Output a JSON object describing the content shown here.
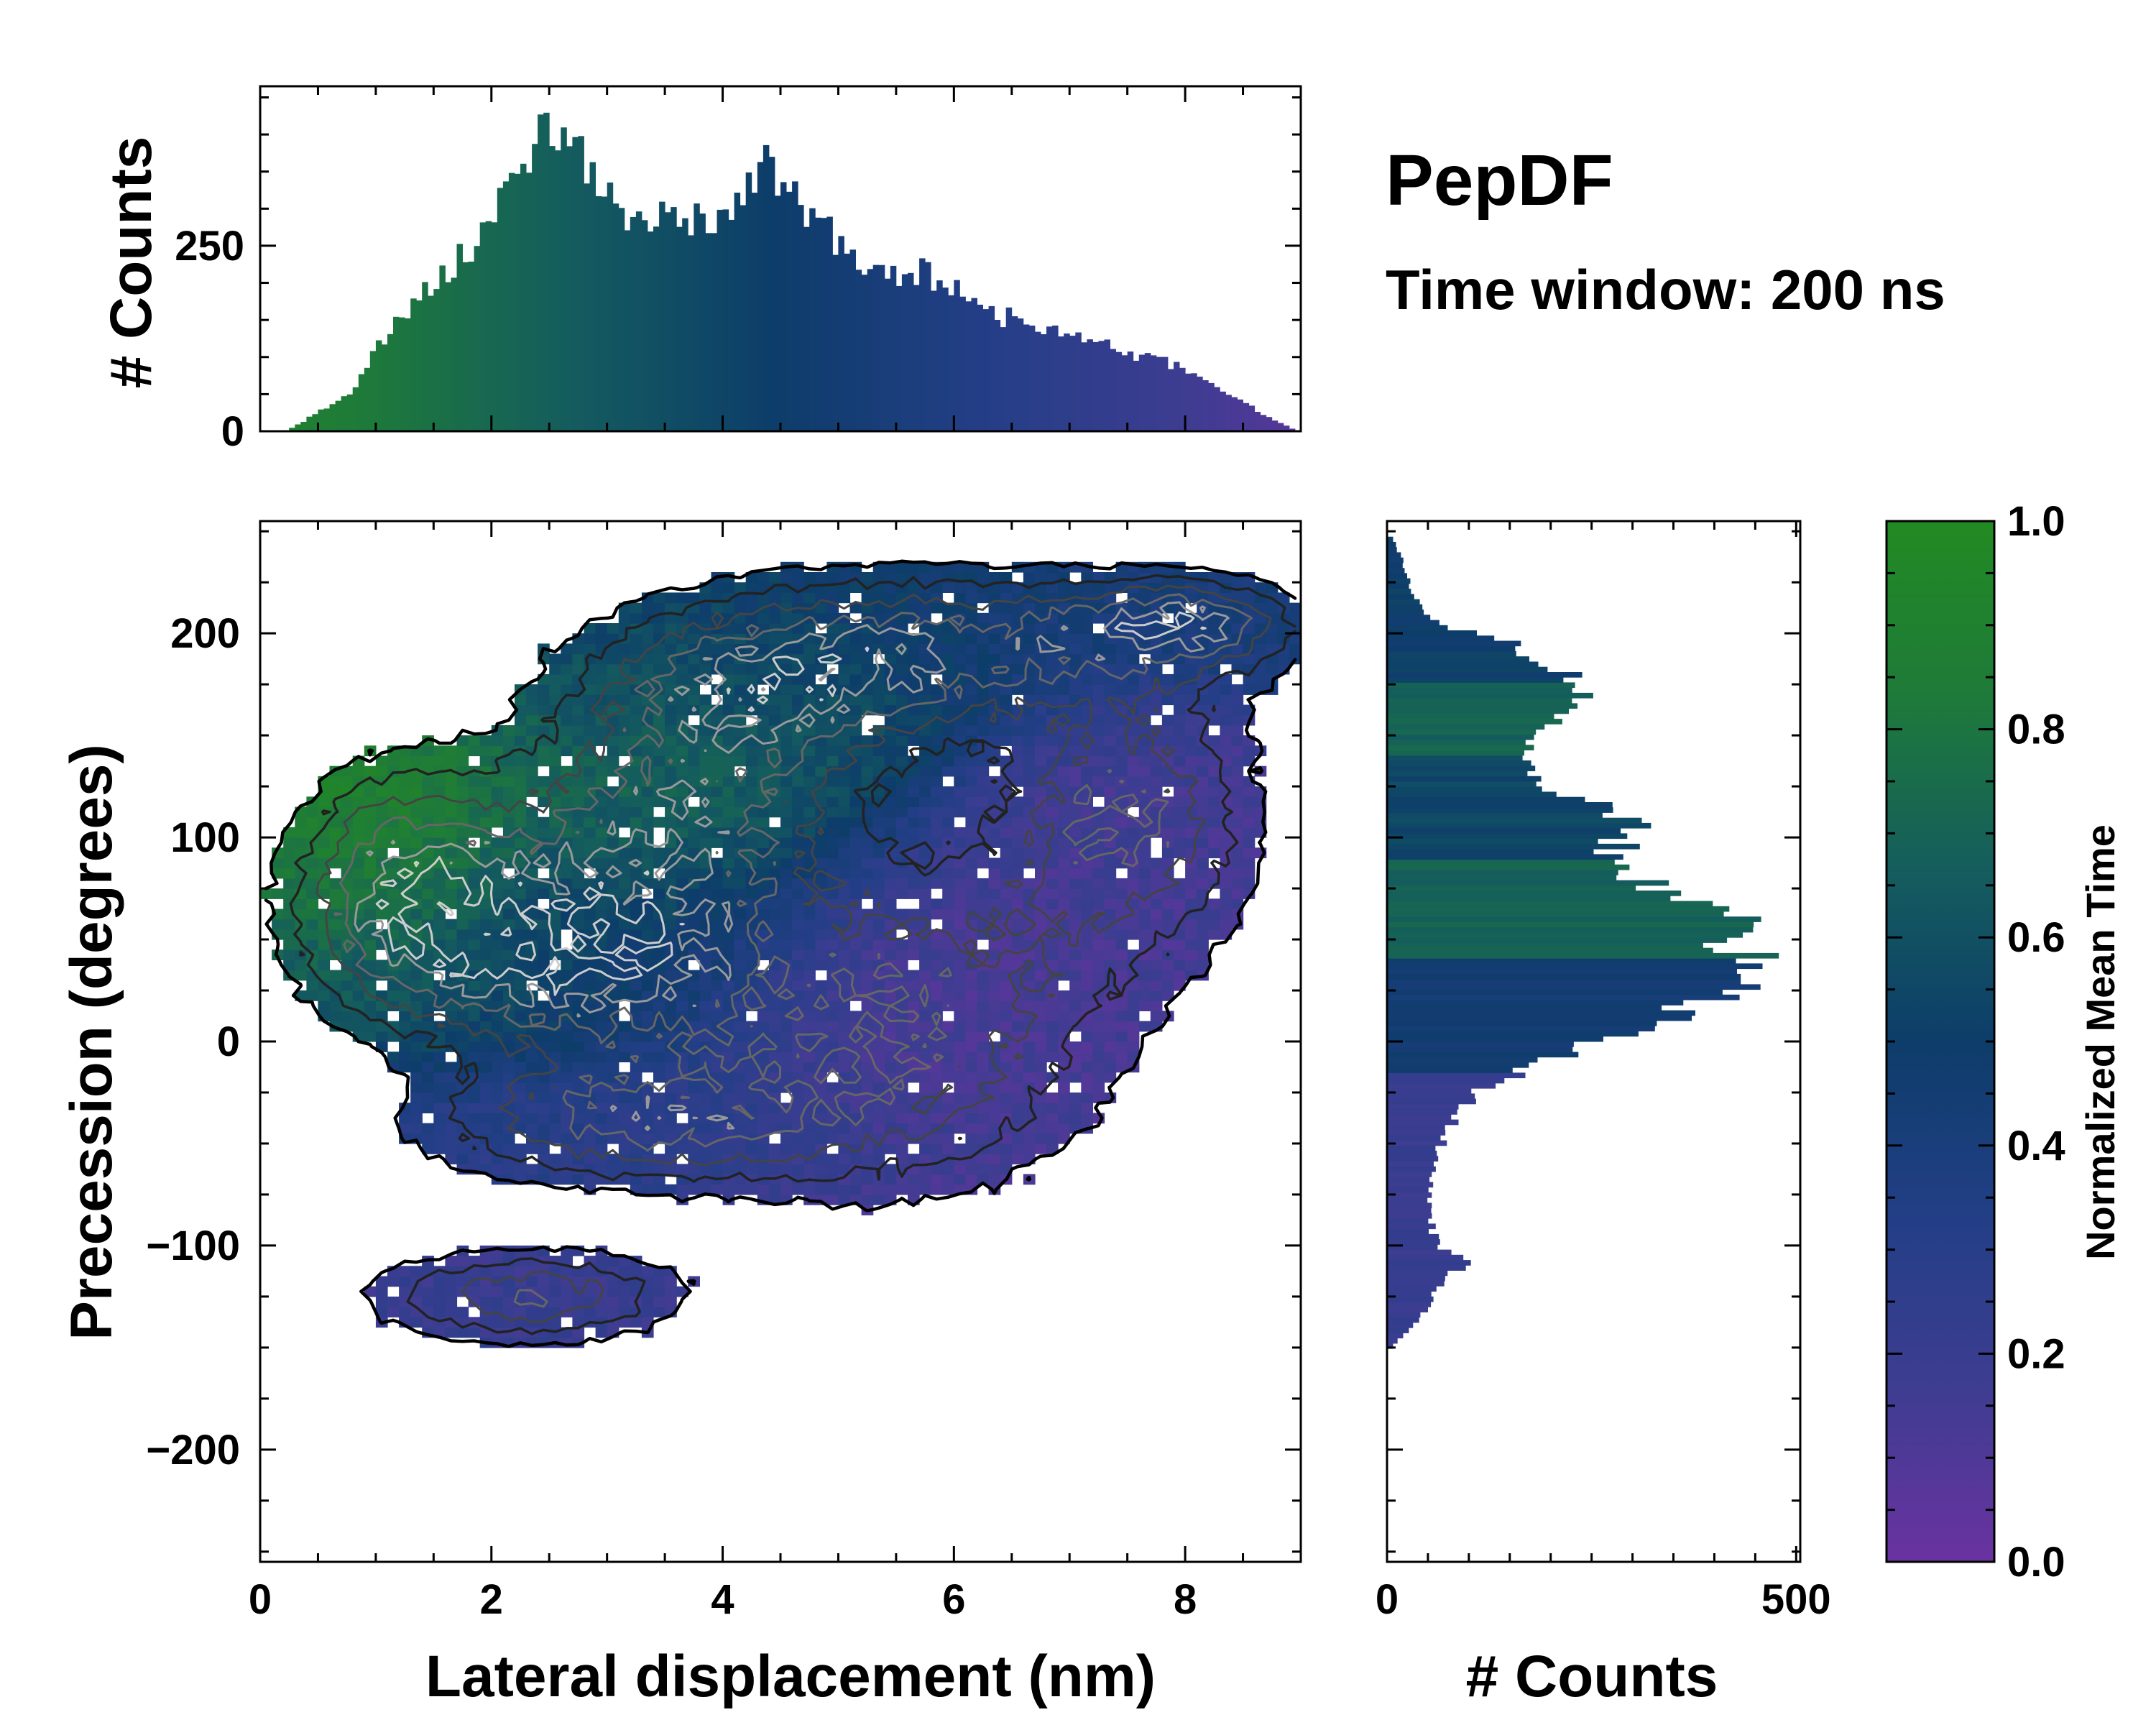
{
  "chart_data": {
    "type": "heatmap",
    "title": "PepDF",
    "subtitle": "Time window: 200 ns",
    "xlabel": "Lateral displacement (nm)",
    "ylabel": "Precession (degrees)",
    "colorbar_label": "Normalized Mean Time",
    "xlim": [
      0,
      9
    ],
    "ylim": [
      -255,
      255
    ],
    "x_ticks": [
      0,
      2,
      4,
      6,
      8
    ],
    "x_tick_labels": [
      "0",
      "2",
      "4",
      "6",
      "8"
    ],
    "y_ticks": [
      -200,
      -100,
      0,
      100,
      200
    ],
    "y_tick_labels": [
      "−200",
      "−100",
      "0",
      "100",
      "200"
    ],
    "colorbar_ticks": [
      0.0,
      0.2,
      0.4,
      0.6,
      0.8,
      1.0
    ],
    "colorbar_tick_labels": [
      "0.0",
      "0.2",
      "0.4",
      "0.6",
      "0.8",
      "1.0"
    ],
    "colormap": [
      "#6a32a0",
      "#3d3d91",
      "#233e86",
      "#0d3d6a",
      "#145c5e",
      "#1e7a3a",
      "#228a22"
    ],
    "top_histogram": {
      "ylabel": "# Counts",
      "y_ticks": [
        0,
        250
      ],
      "y_tick_labels": [
        "0",
        "250"
      ],
      "ylim": [
        0,
        465
      ],
      "x_profile": [
        [
          0.25,
          2
        ],
        [
          0.5,
          25
        ],
        [
          0.8,
          55
        ],
        [
          1.0,
          110
        ],
        [
          1.2,
          145
        ],
        [
          1.4,
          190
        ],
        [
          1.6,
          215
        ],
        [
          1.8,
          240
        ],
        [
          2.0,
          290
        ],
        [
          2.2,
          330
        ],
        [
          2.35,
          380
        ],
        [
          2.45,
          420
        ],
        [
          2.6,
          400
        ],
        [
          2.8,
          365
        ],
        [
          3.0,
          320
        ],
        [
          3.2,
          270
        ],
        [
          3.4,
          290
        ],
        [
          3.6,
          310
        ],
        [
          3.8,
          275
        ],
        [
          4.0,
          285
        ],
        [
          4.2,
          340
        ],
        [
          4.35,
          360
        ],
        [
          4.5,
          320
        ],
        [
          4.8,
          290
        ],
        [
          5.0,
          250
        ],
        [
          5.2,
          225
        ],
        [
          5.5,
          210
        ],
        [
          5.7,
          215
        ],
        [
          6.0,
          190
        ],
        [
          6.3,
          160
        ],
        [
          6.6,
          150
        ],
        [
          7.0,
          130
        ],
        [
          7.4,
          110
        ],
        [
          7.8,
          95
        ],
        [
          8.0,
          85
        ],
        [
          8.3,
          55
        ],
        [
          8.6,
          30
        ],
        [
          8.8,
          12
        ],
        [
          8.95,
          2
        ]
      ]
    },
    "right_histogram": {
      "xlabel": "# Counts",
      "x_ticks": [
        0,
        500
      ],
      "x_tick_labels": [
        "0",
        "500"
      ],
      "xlim": [
        0,
        505
      ],
      "y_profile": [
        [
          -150,
          5
        ],
        [
          -140,
          30
        ],
        [
          -130,
          50
        ],
        [
          -115,
          70
        ],
        [
          -108,
          110
        ],
        [
          -100,
          60
        ],
        [
          -80,
          50
        ],
        [
          -60,
          55
        ],
        [
          -40,
          80
        ],
        [
          -25,
          110
        ],
        [
          -10,
          190
        ],
        [
          0,
          260
        ],
        [
          10,
          330
        ],
        [
          20,
          390
        ],
        [
          30,
          430
        ],
        [
          40,
          440
        ],
        [
          50,
          420
        ],
        [
          60,
          440
        ],
        [
          65,
          400
        ],
        [
          75,
          330
        ],
        [
          85,
          280
        ],
        [
          95,
          280
        ],
        [
          105,
          300
        ],
        [
          115,
          280
        ],
        [
          125,
          180
        ],
        [
          135,
          170
        ],
        [
          145,
          175
        ],
        [
          155,
          200
        ],
        [
          165,
          230
        ],
        [
          175,
          240
        ],
        [
          185,
          200
        ],
        [
          195,
          150
        ],
        [
          205,
          60
        ],
        [
          220,
          30
        ],
        [
          235,
          20
        ],
        [
          248,
          5
        ]
      ]
    },
    "blobs": [
      {
        "x": 1.2,
        "y": 85,
        "rx": 0.9,
        "ry": 50,
        "t": 0.92
      },
      {
        "x": 1.8,
        "y": 45,
        "rx": 1.3,
        "ry": 45,
        "t": 0.55
      },
      {
        "x": 3.2,
        "y": 40,
        "rx": 1.3,
        "ry": 50,
        "t": 0.5
      },
      {
        "x": 3.5,
        "y": 110,
        "rx": 1.5,
        "ry": 45,
        "t": 0.72
      },
      {
        "x": 4.3,
        "y": 170,
        "rx": 1.6,
        "ry": 40,
        "t": 0.62
      },
      {
        "x": 6.0,
        "y": 195,
        "rx": 2.2,
        "ry": 35,
        "t": 0.45
      },
      {
        "x": 8.0,
        "y": 205,
        "rx": 0.9,
        "ry": 20,
        "t": 0.42
      },
      {
        "x": 7.5,
        "y": 110,
        "rx": 1.1,
        "ry": 65,
        "t": 0.15
      },
      {
        "x": 5.6,
        "y": 10,
        "rx": 1.8,
        "ry": 80,
        "t": 0.13
      },
      {
        "x": 3.2,
        "y": -40,
        "rx": 1.8,
        "ry": 30,
        "t": 0.3
      },
      {
        "x": 2.3,
        "y": -125,
        "rx": 1.3,
        "ry": 22,
        "t": 0.2
      }
    ]
  }
}
